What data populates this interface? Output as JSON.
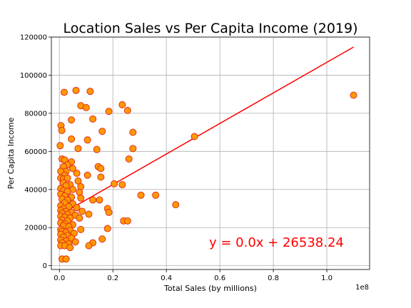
{
  "chart_data": {
    "type": "scatter",
    "title": "Location Sales vs Per Capita Income (2019)",
    "xlabel": "Total Sales (by millions)",
    "ylabel": "Per Capita Income",
    "x_offset_label": "1e8",
    "x_tick_labels": [
      "0.0",
      "0.2",
      "0.4",
      "0.6",
      "0.8",
      "1.0"
    ],
    "y_tick_labels": [
      "0",
      "20000",
      "40000",
      "60000",
      "80000",
      "100000",
      "120000"
    ],
    "xlim": [
      -3000000,
      116000000
    ],
    "ylim": [
      -2000,
      120000
    ],
    "grid": true,
    "marker_fill": "#ff9900",
    "marker_edge": "#e0301e",
    "regression": {
      "equation": "y = 0.0x + 26538.24",
      "slope": 0.000802,
      "intercept": 26538.24,
      "x_range": [
        0,
        110000000
      ],
      "color": "#ff0000"
    },
    "points": [
      [
        1800000,
        91000
      ],
      [
        6200000,
        92000
      ],
      [
        11500000,
        91500
      ],
      [
        23500000,
        84500
      ],
      [
        25500000,
        81500
      ],
      [
        18500000,
        81000
      ],
      [
        8000000,
        84000
      ],
      [
        10000000,
        83000
      ],
      [
        4500000,
        76500
      ],
      [
        12500000,
        77000
      ],
      [
        600000,
        73500
      ],
      [
        900000,
        71000
      ],
      [
        16000000,
        70500
      ],
      [
        27500000,
        70000
      ],
      [
        50500000,
        67800
      ],
      [
        4500000,
        66500
      ],
      [
        10500000,
        66000
      ],
      [
        300000,
        63000
      ],
      [
        7000000,
        61500
      ],
      [
        14000000,
        61000
      ],
      [
        27500000,
        61500
      ],
      [
        1000000,
        56000
      ],
      [
        2000000,
        55500
      ],
      [
        4500000,
        54500
      ],
      [
        26000000,
        56000
      ],
      [
        14500000,
        52000
      ],
      [
        15500000,
        51000
      ],
      [
        3000000,
        53000
      ],
      [
        1500000,
        52000
      ],
      [
        5000000,
        51000
      ],
      [
        2500000,
        49500
      ],
      [
        500000,
        49500
      ],
      [
        6500000,
        48500
      ],
      [
        2000000,
        47500
      ],
      [
        10500000,
        47500
      ],
      [
        15500000,
        46500
      ],
      [
        500000,
        46000
      ],
      [
        1500000,
        45500
      ],
      [
        3000000,
        46000
      ],
      [
        7000000,
        44500
      ],
      [
        1500000,
        43500
      ],
      [
        4000000,
        42500
      ],
      [
        20500000,
        43000
      ],
      [
        23500000,
        42500
      ],
      [
        2500000,
        42000
      ],
      [
        8000000,
        41500
      ],
      [
        5000000,
        40000
      ],
      [
        500000,
        40500
      ],
      [
        1500000,
        39500
      ],
      [
        3000000,
        39000
      ],
      [
        7500000,
        38500
      ],
      [
        500000,
        37500
      ],
      [
        2000000,
        36500
      ],
      [
        4500000,
        36000
      ],
      [
        30500000,
        37000
      ],
      [
        36000000,
        37000
      ],
      [
        8000000,
        35500
      ],
      [
        1000000,
        35000
      ],
      [
        3000000,
        34500
      ],
      [
        12500000,
        34500
      ],
      [
        15000000,
        34500
      ],
      [
        2000000,
        33000
      ],
      [
        5000000,
        32500
      ],
      [
        43500000,
        32000
      ],
      [
        500000,
        31500
      ],
      [
        3500000,
        31000
      ],
      [
        6500000,
        30500
      ],
      [
        1500000,
        30000
      ],
      [
        18000000,
        30000
      ],
      [
        500000,
        29000
      ],
      [
        2500000,
        28500
      ],
      [
        4500000,
        28000
      ],
      [
        8500000,
        28500
      ],
      [
        18500000,
        28000
      ],
      [
        1000000,
        27500
      ],
      [
        3000000,
        27000
      ],
      [
        6000000,
        26500
      ],
      [
        11000000,
        27000
      ],
      [
        500000,
        26000
      ],
      [
        2000000,
        25500
      ],
      [
        4000000,
        25000
      ],
      [
        7500000,
        25000
      ],
      [
        1000000,
        24000
      ],
      [
        3000000,
        23500
      ],
      [
        24000000,
        23500
      ],
      [
        25500000,
        23500
      ],
      [
        500000,
        22500
      ],
      [
        2000000,
        22000
      ],
      [
        5000000,
        21500
      ],
      [
        1500000,
        21000
      ],
      [
        3500000,
        20500
      ],
      [
        18000000,
        19500
      ],
      [
        500000,
        19000
      ],
      [
        4000000,
        18500
      ],
      [
        8000000,
        19000
      ],
      [
        1000000,
        18000
      ],
      [
        2500000,
        17500
      ],
      [
        5500000,
        17000
      ],
      [
        500000,
        16500
      ],
      [
        3000000,
        16000
      ],
      [
        1500000,
        15000
      ],
      [
        4500000,
        14500
      ],
      [
        16000000,
        14000
      ],
      [
        500000,
        13500
      ],
      [
        2500000,
        13000
      ],
      [
        6000000,
        12500
      ],
      [
        12500000,
        12000
      ],
      [
        1000000,
        12000
      ],
      [
        3500000,
        11500
      ],
      [
        500000,
        10500
      ],
      [
        2000000,
        10500
      ],
      [
        11000000,
        10500
      ],
      [
        4000000,
        9500
      ],
      [
        1000000,
        3500
      ],
      [
        2500000,
        3500
      ],
      [
        110000000,
        89500
      ]
    ]
  }
}
